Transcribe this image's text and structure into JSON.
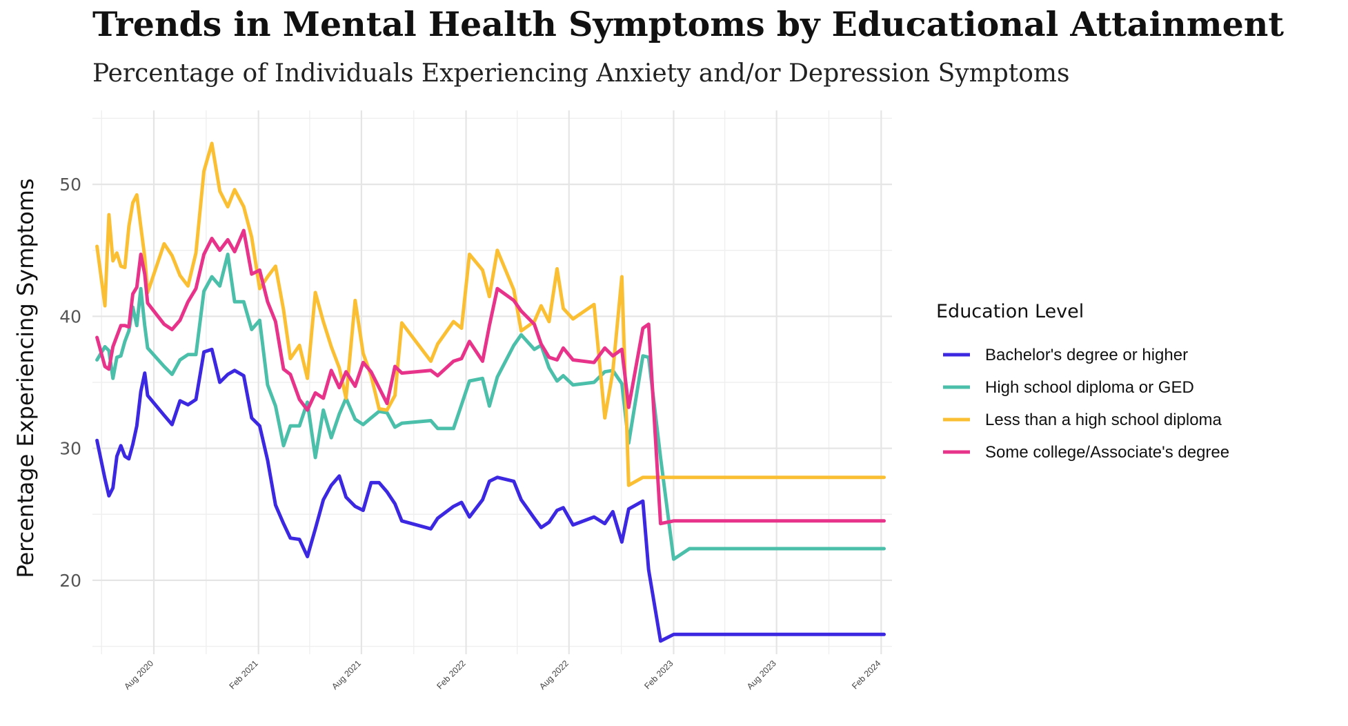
{
  "chart_data": {
    "type": "line",
    "title": "Trends in Mental Health Symptoms by Educational Attainment",
    "subtitle": "Percentage of Individuals Experiencing Anxiety and/or Depression Symptoms",
    "xlabel": "",
    "ylabel": "Percentage Experiencing Symptoms",
    "x_ticks": [
      {
        "date": "2020-08-01",
        "label": "Aug 2020"
      },
      {
        "date": "2021-02-01",
        "label": "Feb 2021"
      },
      {
        "date": "2021-08-01",
        "label": "Aug 2021"
      },
      {
        "date": "2022-02-01",
        "label": "Feb 2022"
      },
      {
        "date": "2022-08-01",
        "label": "Aug 2022"
      },
      {
        "date": "2023-02-01",
        "label": "Feb 2023"
      },
      {
        "date": "2023-08-01",
        "label": "Aug 2023"
      },
      {
        "date": "2024-02-01",
        "label": "Feb 2024"
      }
    ],
    "y_ticks": [
      20,
      30,
      40,
      50
    ],
    "xlim": [
      "2020-04-15",
      "2024-02-20"
    ],
    "ylim": [
      14.4,
      55.6
    ],
    "grid": true,
    "legend": {
      "title": "Education Level",
      "position": "right"
    },
    "x": [
      "2020-04-23",
      "2020-05-07",
      "2020-05-14",
      "2020-05-21",
      "2020-05-28",
      "2020-06-04",
      "2020-06-11",
      "2020-06-18",
      "2020-06-25",
      "2020-07-02",
      "2020-07-09",
      "2020-07-16",
      "2020-07-21",
      "2020-08-19",
      "2020-09-02",
      "2020-09-16",
      "2020-09-30",
      "2020-10-14",
      "2020-10-28",
      "2020-11-11",
      "2020-11-25",
      "2020-12-09",
      "2020-12-21",
      "2021-01-06",
      "2021-01-20",
      "2021-02-03",
      "2021-02-17",
      "2021-03-03",
      "2021-03-17",
      "2021-03-29",
      "2021-04-14",
      "2021-04-28",
      "2021-05-12",
      "2021-05-26",
      "2021-06-09",
      "2021-06-23",
      "2021-07-05",
      "2021-07-21",
      "2021-08-04",
      "2021-08-18",
      "2021-09-01",
      "2021-09-15",
      "2021-09-29",
      "2021-10-11",
      "2021-12-01",
      "2021-12-13",
      "2022-01-10",
      "2022-01-24",
      "2022-02-07",
      "2022-03-02",
      "2022-03-14",
      "2022-03-28",
      "2022-04-26",
      "2022-05-09",
      "2022-06-01",
      "2022-06-13",
      "2022-06-27",
      "2022-07-11",
      "2022-07-22",
      "2022-08-08",
      "2022-09-14",
      "2022-10-03",
      "2022-10-17",
      "2022-11-02",
      "2022-11-14",
      "2022-12-09",
      "2022-12-19",
      "2023-01-09",
      "2023-02-01",
      "2023-03-01",
      "2023-04-05",
      "2023-05-08",
      "2023-06-07",
      "2023-07-10",
      "2023-08-01",
      "2023-08-23",
      "2023-09-20",
      "2023-10-18",
      "2024-01-09",
      "2024-02-06"
    ],
    "series": [
      {
        "name": "Bachelor's degree or higher",
        "color": "#3b28e0",
        "values": [
          30.6,
          27.7,
          26.4,
          27.0,
          29.4,
          30.2,
          29.4,
          29.2,
          30.3,
          31.7,
          34.3,
          35.7,
          34.0,
          32.5,
          31.8,
          33.6,
          33.3,
          33.7,
          37.3,
          37.5,
          35.0,
          35.6,
          35.9,
          35.5,
          32.3,
          31.7,
          29.1,
          25.7,
          24.3,
          23.2,
          23.1,
          21.8,
          23.9,
          26.1,
          27.2,
          27.9,
          26.3,
          25.6,
          25.3,
          27.4,
          27.4,
          26.7,
          25.8,
          24.5,
          23.9,
          24.7,
          25.6,
          25.9,
          24.8,
          26.1,
          27.5,
          27.8,
          27.5,
          26.1,
          24.7,
          24.0,
          24.4,
          25.3,
          25.5,
          24.2,
          24.8,
          24.3,
          25.2,
          22.9,
          25.4,
          26.0,
          20.8,
          15.4,
          15.9,
          15.9,
          15.9,
          15.9,
          15.9,
          15.9,
          15.9,
          15.9,
          15.9,
          15.9,
          15.9,
          15.9
        ]
      },
      {
        "name": "High school diploma or GED",
        "color": "#4bbfaa",
        "values": [
          36.7,
          37.7,
          37.4,
          35.3,
          36.9,
          37.0,
          38.1,
          38.9,
          40.7,
          39.3,
          42.1,
          39.3,
          37.6,
          36.2,
          35.6,
          36.7,
          37.1,
          37.1,
          41.9,
          43.0,
          42.3,
          44.7,
          41.1,
          41.1,
          39.0,
          39.7,
          34.8,
          33.2,
          30.2,
          31.7,
          31.7,
          33.5,
          29.3,
          32.9,
          30.8,
          32.6,
          33.8,
          32.2,
          31.8,
          32.3,
          32.8,
          32.7,
          31.6,
          31.9,
          32.1,
          31.5,
          31.5,
          33.3,
          35.1,
          35.3,
          33.2,
          35.4,
          37.8,
          38.6,
          37.5,
          37.8,
          36.1,
          35.1,
          35.5,
          34.8,
          35.0,
          35.8,
          35.9,
          34.9,
          30.4,
          37.0,
          36.9,
          29.3,
          21.6,
          22.4,
          22.4,
          22.4,
          22.4,
          22.4,
          22.4,
          22.4,
          22.4,
          22.4,
          22.4,
          22.4
        ]
      },
      {
        "name": "Less than a high school diploma",
        "color": "#fbbf34",
        "values": [
          45.3,
          40.8,
          47.7,
          44.2,
          44.8,
          43.8,
          43.7,
          46.8,
          48.6,
          49.2,
          46.8,
          44.5,
          41.8,
          45.5,
          44.6,
          43.1,
          42.3,
          44.8,
          51.0,
          53.1,
          49.5,
          48.3,
          49.6,
          48.3,
          46.0,
          42.1,
          43.0,
          43.8,
          40.5,
          36.8,
          37.8,
          35.3,
          41.8,
          39.6,
          37.7,
          36.1,
          33.8,
          41.2,
          37.2,
          35.5,
          33.0,
          32.9,
          34.0,
          39.5,
          36.6,
          37.9,
          39.6,
          39.1,
          44.7,
          43.5,
          41.5,
          45.0,
          42.0,
          38.9,
          39.6,
          40.8,
          39.6,
          43.6,
          40.6,
          39.8,
          40.9,
          32.3,
          35.8,
          43.0,
          27.2,
          27.8,
          27.8,
          27.8,
          27.8,
          27.8,
          27.8,
          27.8,
          27.8,
          27.8,
          27.8,
          27.8,
          27.8,
          27.8,
          27.8,
          27.8
        ]
      },
      {
        "name": "Some college/Associate's degree",
        "color": "#e8338a",
        "values": [
          38.4,
          36.2,
          36.0,
          37.7,
          38.5,
          39.3,
          39.3,
          39.2,
          41.7,
          42.2,
          44.7,
          43.2,
          41.0,
          39.4,
          39.0,
          39.7,
          41.1,
          42.1,
          44.7,
          45.9,
          45.0,
          45.8,
          44.9,
          46.5,
          43.2,
          43.5,
          41.1,
          39.6,
          36.0,
          35.6,
          33.7,
          32.9,
          34.2,
          33.8,
          35.9,
          34.6,
          35.8,
          34.7,
          36.5,
          35.8,
          34.6,
          33.4,
          36.2,
          35.7,
          35.9,
          35.5,
          36.6,
          36.8,
          38.1,
          36.6,
          39.3,
          42.1,
          41.2,
          40.4,
          39.4,
          37.9,
          36.9,
          36.7,
          37.6,
          36.7,
          36.5,
          37.6,
          37.0,
          37.5,
          33.1,
          39.1,
          39.4,
          24.3,
          24.5,
          24.5,
          24.5,
          24.5,
          24.5,
          24.5,
          24.5,
          24.5,
          24.5,
          24.5,
          24.5,
          24.5
        ]
      }
    ]
  }
}
